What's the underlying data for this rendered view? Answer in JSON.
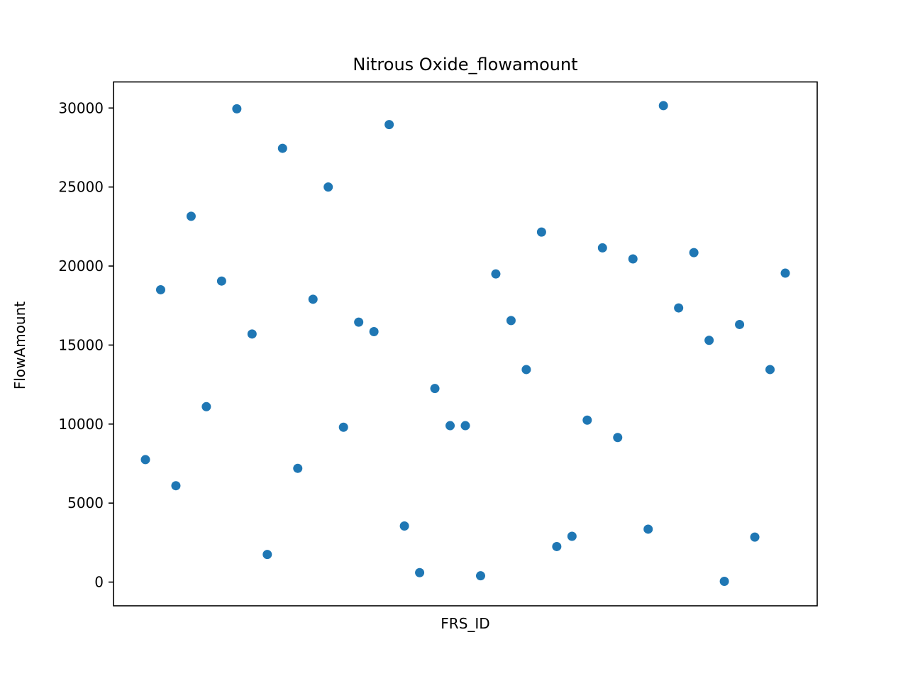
{
  "chart_data": {
    "type": "scatter",
    "title": "Nitrous Oxide_flowamount",
    "xlabel": "FRS_ID",
    "ylabel": "FlowAmount",
    "ylim": [
      -1500,
      31650
    ],
    "yticks": [
      "0",
      "5000",
      "10000",
      "15000",
      "20000",
      "25000",
      "30000"
    ],
    "ytick_values": [
      0,
      5000,
      10000,
      15000,
      20000,
      25000,
      30000
    ],
    "grid": false,
    "x_tick_labels_visible": false,
    "marker_color": "#1f77b4",
    "points": [
      7750,
      18500,
      6100,
      23150,
      11100,
      19050,
      29950,
      15700,
      1750,
      27450,
      7200,
      17900,
      25000,
      9800,
      16450,
      15850,
      28950,
      3550,
      600,
      12250,
      9900,
      9900,
      400,
      19500,
      16550,
      13450,
      22150,
      2250,
      2900,
      10250,
      21150,
      9150,
      20450,
      3350,
      30150,
      17350,
      20850,
      15300,
      50,
      16300,
      2850,
      13450,
      19550
    ]
  }
}
